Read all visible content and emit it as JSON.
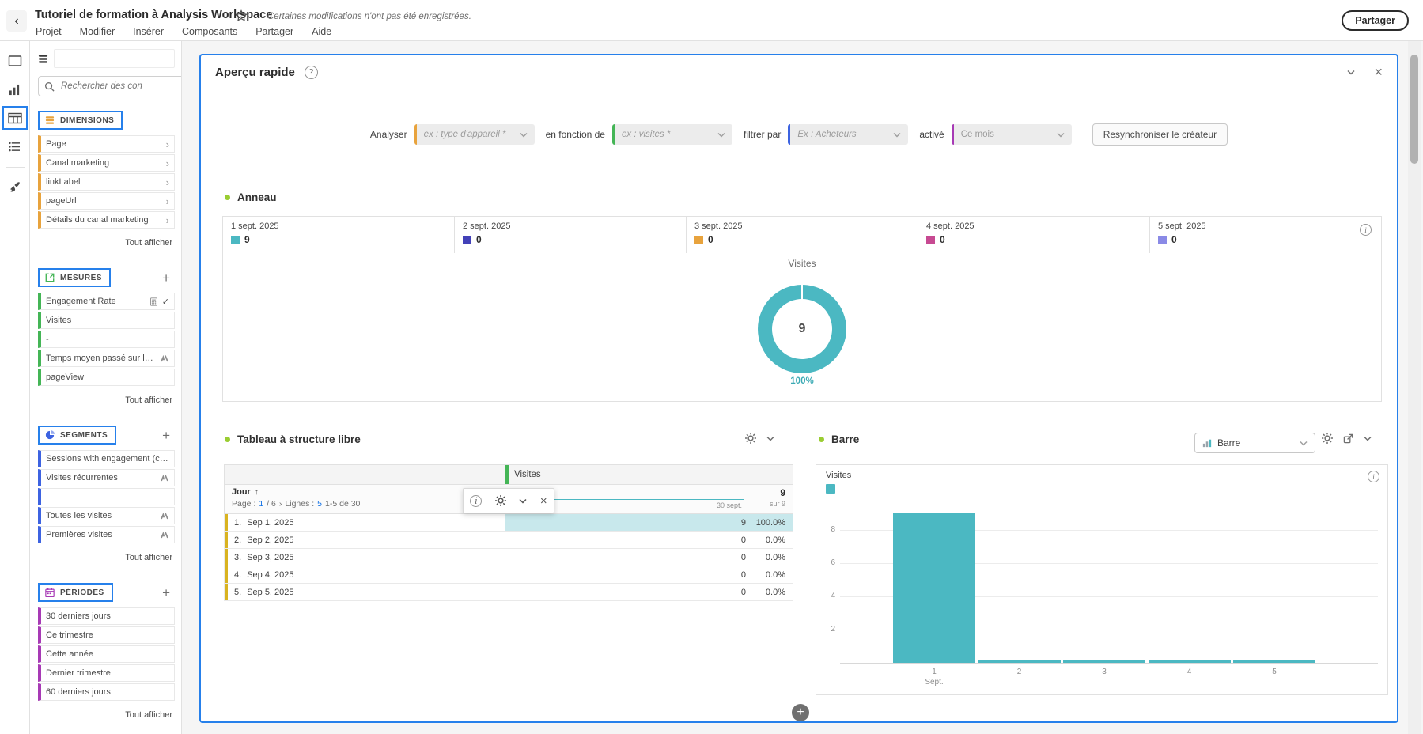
{
  "topbar": {
    "title": "Tutoriel de formation à Analysis Workspace",
    "unsaved_notice": "Certaines modifications n'ont pas été enregistrées.",
    "share_button": "Partager",
    "menu": [
      "Projet",
      "Modifier",
      "Insérer",
      "Composants",
      "Partager",
      "Aide"
    ]
  },
  "left_rail": {
    "icons": [
      "panel-icon",
      "bar-chart-icon",
      "table-icon",
      "components-list-icon",
      "brush-icon"
    ],
    "active": "table-icon"
  },
  "sidebar": {
    "search_placeholder": "Rechercher des con",
    "show_all_label": "Tout afficher",
    "sections": [
      {
        "id": "dimensions",
        "label": "DIMENSIONS",
        "color": "#E8A33D",
        "icon": "dimensions-icon",
        "add_button": false,
        "items": [
          {
            "label": "Page",
            "chevron": true
          },
          {
            "label": "Canal marketing",
            "chevron": true
          },
          {
            "label": "linkLabel",
            "chevron": true
          },
          {
            "label": "pageUrl",
            "chevron": true
          },
          {
            "label": "Détails du canal marketing",
            "chevron": true
          }
        ]
      },
      {
        "id": "mesures",
        "label": "MESURES",
        "color": "#44B556",
        "icon": "metrics-icon",
        "add_button": true,
        "items": [
          {
            "label": "Engagement Rate",
            "icons": [
              "calculator-icon",
              "check-icon"
            ]
          },
          {
            "label": "Visites"
          },
          {
            "label": "-"
          },
          {
            "label": "Temps moyen passé sur le…",
            "icons": [
              "analytics-icon"
            ]
          },
          {
            "label": "pageView"
          }
        ]
      },
      {
        "id": "segments",
        "label": "SEGMENTS",
        "color": "#3D63E1",
        "icon": "segments-icon",
        "add_button": true,
        "items": [
          {
            "label": "Sessions with engagement (cu…"
          },
          {
            "label": "Visites récurrentes",
            "icons": [
              "analytics-icon"
            ]
          },
          {
            "label": ""
          },
          {
            "label": "Toutes les visites",
            "icons": [
              "analytics-icon"
            ]
          },
          {
            "label": "Premières visites",
            "icons": [
              "analytics-icon"
            ]
          }
        ]
      },
      {
        "id": "periodes",
        "label": "PÉRIODES",
        "color": "#A73AB5",
        "icon": "calendar-icon",
        "add_button": true,
        "items": [
          {
            "label": "30 derniers jours"
          },
          {
            "label": "Ce trimestre"
          },
          {
            "label": "Cette année"
          },
          {
            "label": "Dernier trimestre"
          },
          {
            "label": "60 derniers jours"
          }
        ]
      }
    ]
  },
  "panel": {
    "title": "Aperçu rapide",
    "builder": {
      "groups": [
        {
          "label": "Analyser",
          "placeholder": "ex : type d'appareil *",
          "color": "#E8A33D",
          "italic": true
        },
        {
          "label": "en fonction de",
          "placeholder": "ex : visites *",
          "color": "#44B556",
          "italic": true
        },
        {
          "label": "filtrer par",
          "placeholder": "Ex : Acheteurs",
          "color": "#3D63E1",
          "italic": true
        },
        {
          "label": "activé",
          "placeholder": "Ce mois",
          "color": "#A73AB5",
          "italic": false
        }
      ],
      "resync_button": "Resynchroniser le créateur"
    }
  },
  "donut_viz": {
    "title": "Anneau",
    "metric_label": "Visites",
    "center_value": "9",
    "segment_label": "100%",
    "legend": [
      {
        "date": "1 sept. 2025",
        "value": "9",
        "color": "#4BB8C2"
      },
      {
        "date": "2 sept. 2025",
        "value": "0",
        "color": "#4341B8"
      },
      {
        "date": "3 sept. 2025",
        "value": "0",
        "color": "#E8A33D"
      },
      {
        "date": "4 sept. 2025",
        "value": "0",
        "color": "#C74A92"
      },
      {
        "date": "5 sept. 2025",
        "value": "0",
        "color": "#8A8AE6"
      }
    ]
  },
  "freeform_table": {
    "title": "Tableau à structure libre",
    "column_header": "Visites",
    "dimension_header": "Jour",
    "pagination": {
      "page_label": "Page :",
      "page": "1",
      "page_total": "/ 6",
      "rows_label": "Lignes :",
      "rows": "5",
      "range": "1-5 de 30"
    },
    "column_total": "9",
    "column_total_sub": "sur 9",
    "spark_end_label": "30 sept.",
    "rows": [
      {
        "index": "1.",
        "date": "Sep 1, 2025",
        "value": "9",
        "pct": "100.0%",
        "highlight": true
      },
      {
        "index": "2.",
        "date": "Sep 2, 2025",
        "value": "0",
        "pct": "0.0%",
        "highlight": false
      },
      {
        "index": "3.",
        "date": "Sep 3, 2025",
        "value": "0",
        "pct": "0.0%",
        "highlight": false
      },
      {
        "index": "4.",
        "date": "Sep 4, 2025",
        "value": "0",
        "pct": "0.0%",
        "highlight": false
      },
      {
        "index": "5.",
        "date": "Sep 5, 2025",
        "value": "0",
        "pct": "0.0%",
        "highlight": false
      }
    ]
  },
  "bar_viz": {
    "title": "Barre",
    "type_selector": "Barre",
    "legend": "Visites",
    "color": "#4BB8C2",
    "y_ticks": [
      2,
      4,
      6,
      8
    ],
    "categories": [
      {
        "label": "1",
        "sub": "Sept."
      },
      {
        "label": "2",
        "sub": ""
      },
      {
        "label": "3",
        "sub": ""
      },
      {
        "label": "4",
        "sub": ""
      },
      {
        "label": "5",
        "sub": ""
      }
    ],
    "values": [
      9,
      0,
      0,
      0,
      0
    ]
  },
  "chart_data": [
    {
      "type": "pie",
      "donut": true,
      "title": "Anneau",
      "metric": "Visites",
      "categories": [
        "1 sept. 2025",
        "2 sept. 2025",
        "3 sept. 2025",
        "4 sept. 2025",
        "5 sept. 2025"
      ],
      "values": [
        9,
        0,
        0,
        0,
        0
      ],
      "center_total": 9,
      "slice_labels": [
        "100%"
      ],
      "colors": [
        "#4BB8C2",
        "#4341B8",
        "#E8A33D",
        "#C74A92",
        "#8A8AE6"
      ]
    },
    {
      "type": "table",
      "title": "Tableau à structure libre",
      "columns": [
        "Jour",
        "Visites"
      ],
      "rows": [
        [
          "Sep 1, 2025",
          "9 (100.0%)"
        ],
        [
          "Sep 2, 2025",
          "0 (0.0%)"
        ],
        [
          "Sep 3, 2025",
          "0 (0.0%)"
        ],
        [
          "Sep 4, 2025",
          "0 (0.0%)"
        ],
        [
          "Sep 5, 2025",
          "0 (0.0%)"
        ]
      ],
      "total": 9,
      "pagination": "Page : 1 / 6 — Lignes : 5 — 1-5 de 30"
    },
    {
      "type": "bar",
      "title": "Barre",
      "categories": [
        "1 Sept.",
        "2",
        "3",
        "4",
        "5"
      ],
      "values": [
        9,
        0,
        0,
        0,
        0
      ],
      "ylabel": "Visites",
      "ylim": [
        0,
        9.5
      ],
      "legend": [
        "Visites"
      ],
      "legend_position": "top-left",
      "grid": true
    }
  ]
}
